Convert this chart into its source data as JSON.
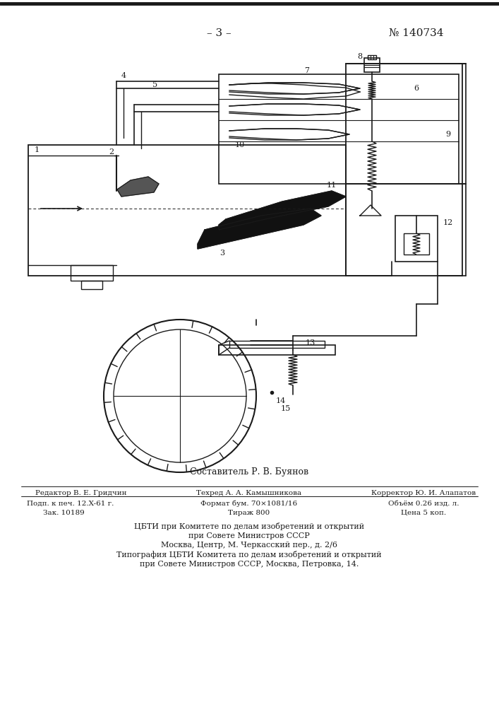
{
  "page_number": "– 3 –",
  "patent_number": "№ 140734",
  "composer": "Составитель Р. В. Буянов",
  "editor_line1": "Редактор В. Е. Гридчин",
  "editor_line2": "Техред А. А. Камышникова",
  "editor_line3": "Корректор Ю. И. Алапатов",
  "info_r1c1": "Подп. к печ. 12.X-61 г.",
  "info_r1c2": "Формат бум. 70×1081/16",
  "info_r1c3": "Объём 0.26 изд. л.",
  "info_r2c1": "Зак. 10189",
  "info_r2c2": "Тираж 800",
  "info_r2c3": "Цена 5 коп.",
  "info_line3": "ЦБТИ при Комитете по делам изобретений и открытий",
  "info_line4": "при Совете Министров СССР",
  "info_line5": "Москва, Центр, М. Черкасский пер., д. 2/6",
  "info_line6": "Типография ЦБТИ Комитета по делам изобретений и открытий",
  "info_line7": "при Совете Министров СССР, Москва, Петровка, 14.",
  "bg_color": "#ffffff",
  "line_color": "#1a1a1a"
}
